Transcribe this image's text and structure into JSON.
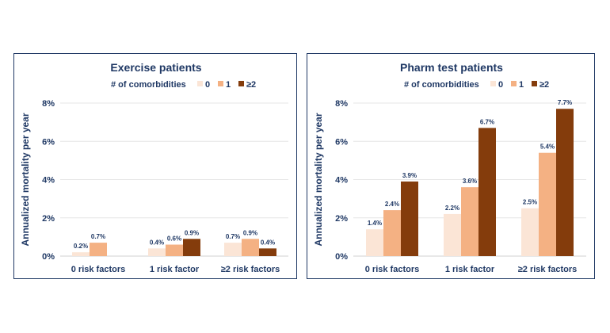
{
  "chart_data": [
    {
      "type": "bar",
      "title": "Exercise patients",
      "legend_title": "# of comorbidities",
      "legend_position": "top",
      "ylabel": "Annualized mortality per year",
      "ylim": [
        0,
        8
      ],
      "yticks": [
        "0%",
        "2%",
        "4%",
        "6%",
        "8%"
      ],
      "grid": true,
      "categories": [
        "0 risk factors",
        "1 risk factor",
        "≥2 risk factors"
      ],
      "series": [
        {
          "name": "0",
          "color": "#fbe5d6",
          "values": [
            0.2,
            0.4,
            0.7
          ],
          "labels": [
            "0.2%",
            "0.4%",
            "0.7%"
          ]
        },
        {
          "name": "1",
          "color": "#f4b183",
          "values": [
            0.7,
            0.6,
            0.9
          ],
          "labels": [
            "0.7%",
            "0.6%",
            "0.9%"
          ]
        },
        {
          "name": "≥2",
          "color": "#843c0c",
          "values": [
            null,
            0.9,
            0.4
          ],
          "labels": [
            null,
            "0.9%",
            "0.4%"
          ]
        }
      ]
    },
    {
      "type": "bar",
      "title": "Pharm test patients",
      "legend_title": "# of comorbidities",
      "legend_position": "top",
      "ylabel": "Annualized mortality per year",
      "ylim": [
        0,
        8
      ],
      "yticks": [
        "0%",
        "2%",
        "4%",
        "6%",
        "8%"
      ],
      "grid": true,
      "categories": [
        "0 risk factors",
        "1 risk factor",
        "≥2 risk factors"
      ],
      "series": [
        {
          "name": "0",
          "color": "#fbe5d6",
          "values": [
            1.4,
            2.2,
            2.5
          ],
          "labels": [
            "1.4%",
            "2.2%",
            "2.5%"
          ]
        },
        {
          "name": "1",
          "color": "#f4b183",
          "values": [
            2.4,
            3.6,
            5.4
          ],
          "labels": [
            "2.4%",
            "3.6%",
            "5.4%"
          ]
        },
        {
          "name": "≥2",
          "color": "#843c0c",
          "values": [
            3.9,
            6.7,
            7.7
          ],
          "labels": [
            "3.9%",
            "6.7%",
            "7.7%"
          ]
        }
      ]
    }
  ]
}
